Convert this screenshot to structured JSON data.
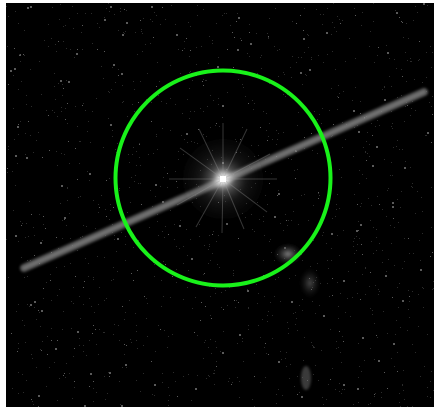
{
  "image": {
    "background_color": "#000000",
    "frame_color": "#ffffff",
    "region_marker": {
      "shape": "circle",
      "color": "#19f21a"
    },
    "features": [
      {
        "name": "central-point-source",
        "color": "#ffffff"
      },
      {
        "name": "diagonal-streak",
        "color": "#8a8a8a"
      },
      {
        "name": "secondary-faint-source",
        "color": "#6f6f6f"
      },
      {
        "name": "background-noise",
        "color": "#4a4a4a"
      }
    ]
  }
}
